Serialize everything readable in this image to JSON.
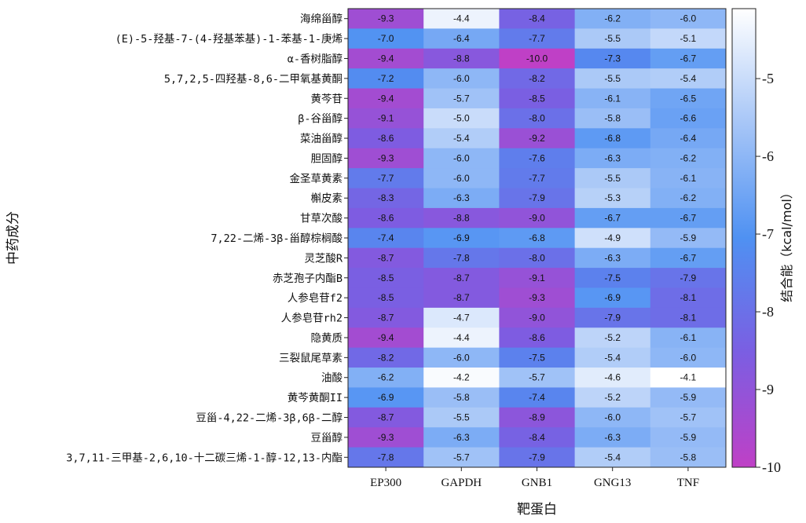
{
  "chart_data": {
    "type": "heatmap",
    "xlabel": "靶蛋白",
    "ylabel": "中药成分",
    "colorbar_label": "结合能（kcal/mol）",
    "color_range": [
      -10,
      -4.1
    ],
    "colorbar_ticks": [
      "-5",
      "-6",
      "-7",
      "-8",
      "-9",
      "-10"
    ],
    "colorbar_tick_values": [
      -5,
      -6,
      -7,
      -8,
      -9,
      -10
    ],
    "colorscale": [
      "#bf40c6",
      "#7b5ee2",
      "#4f91f2",
      "#a7c6f7",
      "#ffffff"
    ],
    "columns": [
      "EP300",
      "GAPDH",
      "GNB1",
      "GNG13",
      "TNF"
    ],
    "rows": [
      "海绵甾醇",
      "(E)-5-羟基-7-(4-羟基苯基)-1-苯基-1-庚烯",
      "α-香树脂醇",
      "5,7,2,5-四羟基-8,6-二甲氧基黄酮",
      "黄芩苷",
      "β-谷甾醇",
      "菜油甾醇",
      "胆固醇",
      "金圣草黄素",
      "槲皮素",
      "甘草次酸",
      "7,22-二烯-3β-甾醇棕榈酸",
      "灵芝酸R",
      "赤芝孢子内酯B",
      "人参皂苷f2",
      "人参皂苷rh2",
      "隐黄质",
      "三裂鼠尾草素",
      "油酸",
      "黄芩黄酮II",
      "豆甾-4,22-二烯-3β,6β-二醇",
      "豆甾醇",
      "3,7,11-三甲基-2,6,10-十二碳三烯-1-醇-12,13-内酯"
    ],
    "values": [
      [
        -9.3,
        -4.4,
        -8.4,
        -6.2,
        -6.0
      ],
      [
        -7.0,
        -6.4,
        -7.7,
        -5.5,
        -5.1
      ],
      [
        -9.4,
        -8.8,
        -10.0,
        -7.3,
        -6.7
      ],
      [
        -7.2,
        -6.0,
        -8.2,
        -5.5,
        -5.4
      ],
      [
        -9.4,
        -5.7,
        -8.5,
        -6.1,
        -6.5
      ],
      [
        -9.1,
        -5.0,
        -8.0,
        -5.8,
        -6.6
      ],
      [
        -8.6,
        -5.4,
        -9.2,
        -6.8,
        -6.4
      ],
      [
        -9.3,
        -6.0,
        -7.6,
        -6.3,
        -6.2
      ],
      [
        -7.7,
        -6.0,
        -7.7,
        -5.5,
        -6.1
      ],
      [
        -8.3,
        -6.3,
        -7.9,
        -5.3,
        -6.2
      ],
      [
        -8.6,
        -8.8,
        -9.0,
        -6.7,
        -6.7
      ],
      [
        -7.4,
        -6.9,
        -6.8,
        -4.9,
        -5.9
      ],
      [
        -8.7,
        -7.8,
        -8.0,
        -6.3,
        -6.7
      ],
      [
        -8.5,
        -8.7,
        -9.1,
        -7.5,
        -7.9
      ],
      [
        -8.5,
        -8.7,
        -9.3,
        -6.9,
        -8.1
      ],
      [
        -8.7,
        -4.7,
        -9.0,
        -7.9,
        -8.1
      ],
      [
        -9.4,
        -4.4,
        -8.6,
        -5.2,
        -6.1
      ],
      [
        -8.2,
        -6.0,
        -7.5,
        -5.4,
        -6.0
      ],
      [
        -6.2,
        -4.2,
        -5.7,
        -4.6,
        -4.1
      ],
      [
        -6.9,
        -5.8,
        -7.4,
        -5.2,
        -5.9
      ],
      [
        -8.7,
        -5.5,
        -8.9,
        -6.0,
        -5.7
      ],
      [
        -9.3,
        -6.3,
        -8.4,
        -6.3,
        -5.9
      ],
      [
        -7.8,
        -5.7,
        -7.9,
        -5.4,
        -5.8
      ]
    ]
  }
}
